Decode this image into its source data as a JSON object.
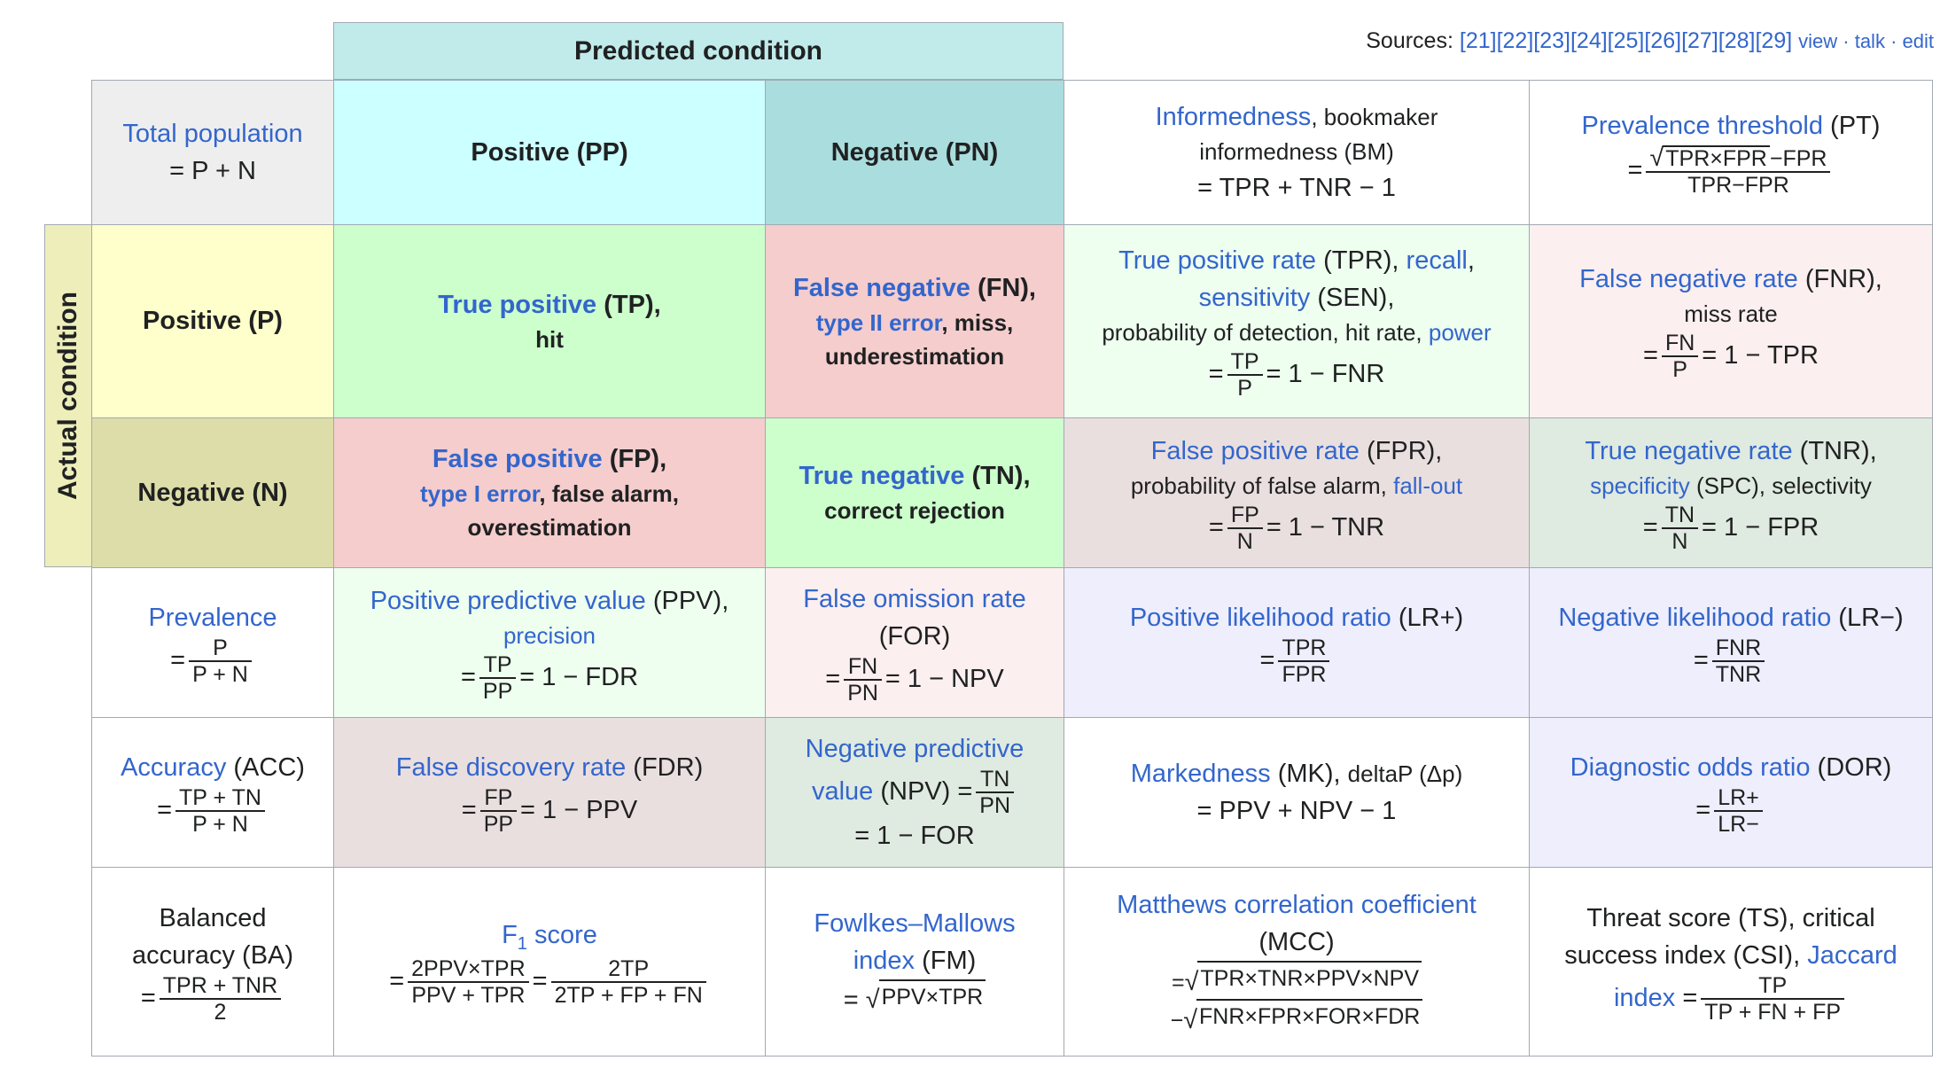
{
  "headers": {
    "predicted_condition": "Predicted condition",
    "actual_condition": "Actual condition"
  },
  "sources": {
    "label": "Sources:",
    "refs": "[21][22][23][24][25][26][27][28][29]",
    "view": "view",
    "talk": "talk",
    "edit": "edit"
  },
  "cells": {
    "total_population": {
      "link": "Total population",
      "formula": "= P + N"
    },
    "positive_pp": "Positive (PP)",
    "negative_pn": "Negative (PN)",
    "informedness": {
      "link": "Informedness",
      "rest1": ", bookmaker",
      "line2": "informedness (BM)",
      "formula": "= TPR + TNR − 1"
    },
    "prevalence_threshold": {
      "link": "Prevalence threshold",
      "rest": " (PT)",
      "num_rad": "TPR×FPR",
      "num_rest": "−FPR",
      "den": "TPR−FPR"
    },
    "positive_p": "Positive (P)",
    "true_positive": {
      "link": "True positive",
      "rest": " (TP),",
      "line2": "hit"
    },
    "false_negative": {
      "link": "False negative",
      "rest": " (FN),",
      "link2": "type II error",
      "rest2": ", miss,",
      "line3": "underestimation"
    },
    "tpr": {
      "link1": "True positive rate",
      "rest1": " (TPR), ",
      "link2": "recall",
      "rest2": ",",
      "link3": "sensitivity",
      "rest3": " (SEN),",
      "line3": "probability of detection, hit rate, ",
      "link4": "power",
      "num": "TP",
      "den": "P",
      "after": "= 1 − FNR"
    },
    "fnr": {
      "link": "False negative rate",
      "rest": " (FNR),",
      "line2": "miss rate",
      "num": "FN",
      "den": "P",
      "after": "= 1 − TPR"
    },
    "negative_n": "Negative (N)",
    "false_positive": {
      "link": "False positive",
      "rest": " (FP),",
      "link2": "type I error",
      "rest2": ", false alarm,",
      "line3": "overestimation"
    },
    "true_negative": {
      "link": "True negative",
      "rest": " (TN),",
      "line2": "correct rejection"
    },
    "fpr": {
      "link": "False positive rate",
      "rest": " (FPR),",
      "line2": "probability of false alarm, ",
      "link2": "fall-out",
      "num": "FP",
      "den": "N",
      "after": "= 1 − TNR"
    },
    "tnr": {
      "link": "True negative rate",
      "rest": " (TNR),",
      "link2": "specificity",
      "rest2": " (SPC), selectivity",
      "num": "TN",
      "den": "N",
      "after": "= 1 − FPR"
    },
    "prevalence": {
      "link": "Prevalence",
      "num": "P",
      "den": "P + N"
    },
    "ppv": {
      "link": "Positive predictive value",
      "rest": " (PPV),",
      "link2": "precision",
      "num": "TP",
      "den": "PP",
      "after": "= 1 − FDR"
    },
    "for": {
      "link": "False omission rate",
      "line2": "(FOR)",
      "num": "FN",
      "den": "PN",
      "after": "= 1 − NPV"
    },
    "lr_plus": {
      "link": "Positive likelihood ratio",
      "rest": " (LR+)",
      "num": "TPR",
      "den": "FPR"
    },
    "lr_minus": {
      "link": "Negative likelihood ratio",
      "rest": " (LR−)",
      "num": "FNR",
      "den": "TNR"
    },
    "accuracy": {
      "link": "Accuracy",
      "rest": " (ACC)",
      "num": "TP + TN",
      "den": "P + N"
    },
    "fdr": {
      "link": "False discovery rate",
      "rest": " (FDR)",
      "num": "FP",
      "den": "PP",
      "after": "= 1 − PPV"
    },
    "npv": {
      "link1": "Negative predictive",
      "link2": "value",
      "rest": " (NPV) =",
      "num": "TN",
      "den": "PN",
      "line3": "= 1 − FOR"
    },
    "markedness": {
      "link": "Markedness",
      "rest": " (MK), ",
      "small": "deltaP (Δp)",
      "formula": "= PPV + NPV − 1"
    },
    "dor": {
      "link": "Diagnostic odds ratio",
      "rest": " (DOR)",
      "num": "LR+",
      "den": "LR−"
    },
    "balanced_accuracy": {
      "line1": "Balanced",
      "line2": "accuracy (BA)",
      "num": "TPR + TNR",
      "den": "2"
    },
    "f1": {
      "link_main": "F",
      "link_sub": "1",
      "link_rest": " score",
      "num1": "2PPV×TPR",
      "den1": "PPV + TPR",
      "num2": "2TP",
      "den2": "2TP + FP + FN"
    },
    "fm": {
      "link1": "Fowlkes–Mallows",
      "link2": "index",
      "rest": " (FM)",
      "rad": "PPV×TPR"
    },
    "mcc": {
      "link": "Matthews correlation coefficient",
      "line2": "(MCC)",
      "rad1": "TPR×TNR×PPV×NPV",
      "rad2": "FNR×FPR×FOR×FDR"
    },
    "threat_score": {
      "line1": "Threat score (TS), critical",
      "line2": "success index (CSI), ",
      "link": "Jaccard",
      "link2": "index",
      "num": "TP",
      "den": "TP + FN + FP"
    }
  },
  "colors": {
    "header_predicted": "#c1ebeb",
    "actual_condition": "#eeeebb",
    "total_population": "#eeeeee",
    "positive_pp": "#ccffff",
    "negative_pn": "#aadddd",
    "positive_p": "#ffffcc",
    "negative_n": "#dddda9",
    "true_cell": "#ccffcc",
    "false_cell": "#f5cdcd",
    "light_green": "#eefeef",
    "light_pink": "#fcefef",
    "rose_gray": "#eadfdf",
    "gray_green": "#dfeae0",
    "lavender": "#eeeefc",
    "white": "#ffffff"
  }
}
